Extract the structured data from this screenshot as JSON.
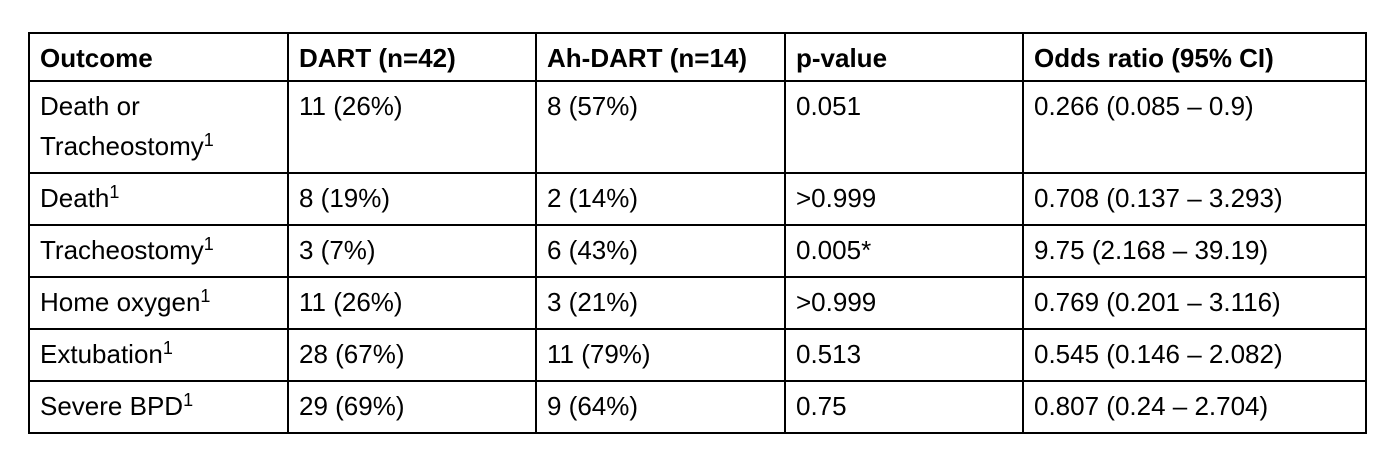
{
  "table": {
    "headers": [
      "Outcome",
      "DART (n=42)",
      "Ah-DART (n=14)",
      "p-value",
      "Odds ratio (95% CI)"
    ],
    "rows": [
      {
        "outcome": "Death or Tracheostomy",
        "sup": "1",
        "dart": "11 (26%)",
        "ahdart": "8 (57%)",
        "p": "0.051",
        "or": "0.266 (0.085 – 0.9)"
      },
      {
        "outcome": "Death",
        "sup": "1",
        "dart": "8 (19%)",
        "ahdart": "2 (14%)",
        "p": ">0.999",
        "or": "0.708 (0.137 – 3.293)"
      },
      {
        "outcome": "Tracheostomy",
        "sup": "1",
        "dart": "3 (7%)",
        "ahdart": "6 (43%)",
        "p": "0.005*",
        "or": "9.75 (2.168 – 39.19)"
      },
      {
        "outcome": "Home oxygen",
        "sup": "1",
        "dart": "11 (26%)",
        "ahdart": "3 (21%)",
        "p": ">0.999",
        "or": "0.769 (0.201 – 3.116)"
      },
      {
        "outcome": "Extubation",
        "sup": "1",
        "dart": "28 (67%)",
        "ahdart": "11 (79%)",
        "p": "0.513",
        "or": "0.545 (0.146 – 2.082)"
      },
      {
        "outcome": "Severe BPD",
        "sup": "1",
        "dart": "29 (69%)",
        "ahdart": "9 (64%)",
        "p": "0.75",
        "or": "0.807 (0.24 – 2.704)"
      }
    ]
  }
}
